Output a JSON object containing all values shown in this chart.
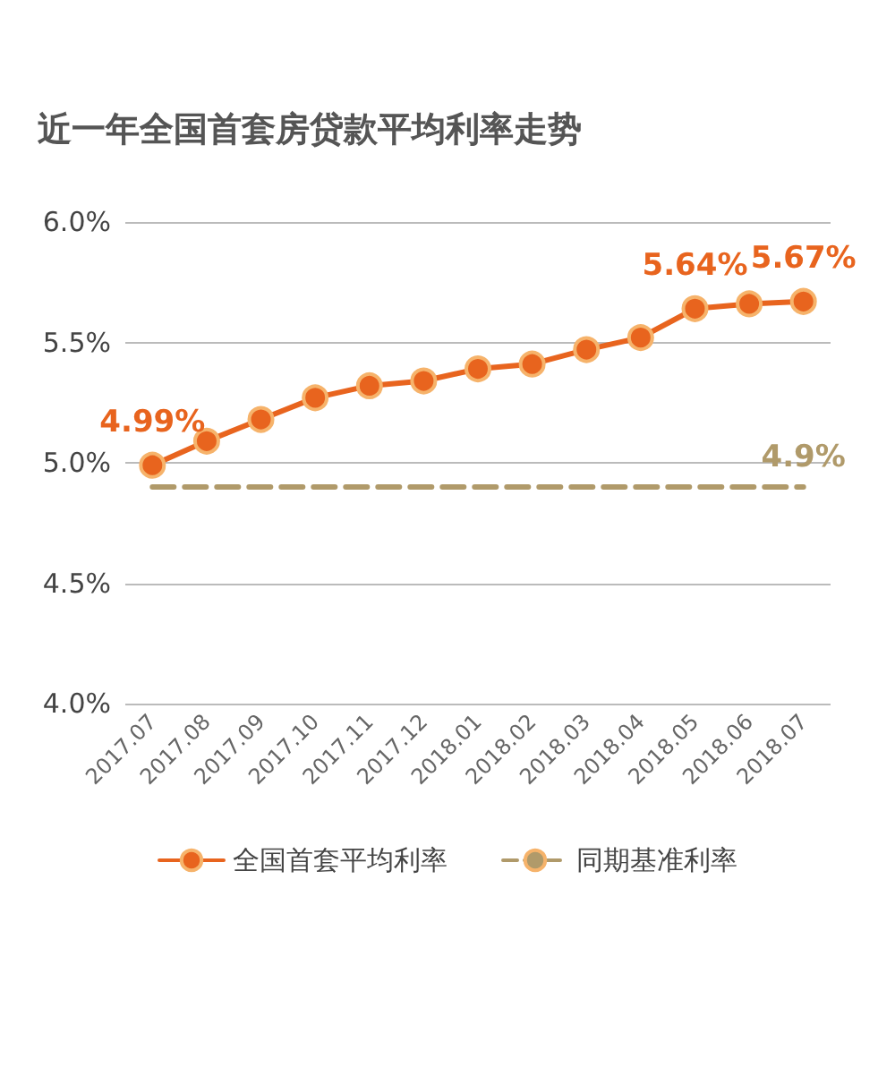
{
  "chart_data": {
    "type": "line",
    "title": "近一年全国首套房贷款平均利率走势",
    "categories": [
      "2017.07",
      "2017.08",
      "2017.09",
      "2017.10",
      "2017.11",
      "2017.12",
      "2018.01",
      "2018.02",
      "2018.03",
      "2018.04",
      "2018.05",
      "2018.06",
      "2018.07"
    ],
    "series": [
      {
        "name": "全国首套平均利率",
        "color": "#e8641e",
        "marker": "circle",
        "line_style": "solid",
        "values": [
          4.99,
          5.09,
          5.18,
          5.27,
          5.32,
          5.34,
          5.39,
          5.41,
          5.47,
          5.52,
          5.64,
          5.66,
          5.67
        ],
        "value_labels": [
          "4.99%",
          null,
          null,
          null,
          null,
          null,
          null,
          null,
          null,
          null,
          "5.64%",
          null,
          "5.67%"
        ]
      },
      {
        "name": "同期基准利率",
        "color": "#b09a6a",
        "marker": "none",
        "line_style": "dashed",
        "values": [
          4.9,
          4.9,
          4.9,
          4.9,
          4.9,
          4.9,
          4.9,
          4.9,
          4.9,
          4.9,
          4.9,
          4.9,
          4.9
        ],
        "value_labels": [
          null,
          null,
          null,
          null,
          null,
          null,
          null,
          null,
          null,
          null,
          null,
          null,
          "4.9%"
        ]
      }
    ],
    "ylim": [
      4.0,
      6.0
    ],
    "yticks": [
      {
        "value": 4.0,
        "label": "4.0%"
      },
      {
        "value": 4.5,
        "label": "4.5%"
      },
      {
        "value": 5.0,
        "label": "5.0%"
      },
      {
        "value": 5.5,
        "label": "5.5%"
      },
      {
        "value": 6.0,
        "label": "6.0%"
      }
    ],
    "grid": "y",
    "legend": "bottom"
  }
}
